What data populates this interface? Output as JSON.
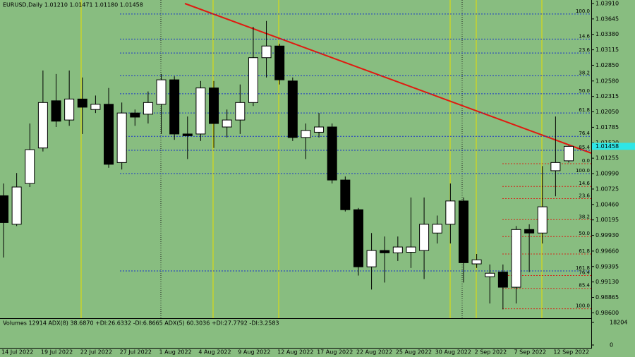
{
  "chart_data": {
    "type": "candlestick",
    "title": "EURUSD,Daily  1.01210 1.01471 1.01180 1.01458",
    "categories": [
      "14 Jul 2022",
      null,
      null,
      "19 Jul 2022",
      null,
      null,
      "22 Jul 2022",
      null,
      null,
      "27 Jul 2022",
      null,
      null,
      "1 Aug 2022",
      null,
      null,
      "4 Aug 2022",
      null,
      null,
      "9 Aug 2022",
      null,
      null,
      "12 Aug 2022",
      null,
      null,
      "17 Aug 2022",
      null,
      null,
      "22 Aug 2022",
      null,
      null,
      "25 Aug 2022",
      null,
      null,
      "30 Aug 2022",
      null,
      null,
      "2 Sep 2022",
      null,
      null,
      "7 Sep 2022",
      null,
      null,
      "12 Sep 2022",
      null
    ],
    "open": [
      1.0061,
      1.0012,
      1.0082,
      1.0143,
      1.0224,
      1.0191,
      1.0227,
      1.0209,
      1.0218,
      1.0118,
      1.0203,
      1.0201,
      1.0218,
      1.026,
      1.0167,
      1.0167,
      1.0246,
      1.0179,
      1.0191,
      1.0221,
      1.0298,
      1.0318,
      1.0258,
      1.0161,
      1.017,
      1.0179,
      1.0088,
      1.0037,
      0.9939,
      0.9967,
      0.9963,
      0.9964,
      0.9967,
      0.9997,
      1.0012,
      1.0052,
      0.9944,
      0.9922,
      0.993,
      0.9904,
      1.0003,
      0.9997,
      1.0104,
      1.0121
    ],
    "high": [
      1.0082,
      1.01,
      1.0185,
      1.0276,
      1.027,
      1.0276,
      1.0264,
      1.0233,
      1.0246,
      1.0221,
      1.0209,
      1.024,
      1.027,
      1.0266,
      1.0197,
      1.0258,
      1.0258,
      1.0209,
      1.0252,
      1.0351,
      1.0361,
      1.0322,
      1.0264,
      1.0185,
      1.0203,
      1.0185,
      1.0094,
      1.004,
      0.9997,
      0.9991,
      0.9991,
      1.0058,
      1.0058,
      1.0027,
      1.0082,
      1.0058,
      0.9961,
      0.9943,
      0.9943,
      1.0009,
      1.0012,
      1.0112,
      1.0197,
      1.01471
    ],
    "low": [
      0.9955,
      1.0009,
      1.0076,
      1.0137,
      1.0179,
      1.0181,
      1.0167,
      1.0203,
      1.0109,
      1.0106,
      1.0181,
      1.0185,
      1.0167,
      1.0157,
      1.0124,
      1.0155,
      1.0143,
      1.0161,
      1.0167,
      1.0215,
      1.0264,
      1.0252,
      1.0155,
      1.0124,
      1.0161,
      1.0082,
      1.0034,
      0.9924,
      0.99,
      0.9912,
      0.9949,
      0.9937,
      0.9918,
      0.9979,
      0.9979,
      0.9912,
      0.9937,
      0.9876,
      0.9866,
      0.9876,
      0.993,
      0.9979,
      1.006,
      1.0118
    ],
    "close": [
      1.0015,
      1.0076,
      1.014,
      1.0221,
      1.0189,
      1.0227,
      1.0213,
      1.0218,
      1.0115,
      1.0203,
      1.0196,
      1.0221,
      1.026,
      1.0167,
      1.0164,
      1.0246,
      1.0185,
      1.0191,
      1.0221,
      1.0298,
      1.0318,
      1.026,
      1.0161,
      1.0173,
      1.0179,
      1.0088,
      1.0037,
      0.9939,
      0.9967,
      0.9963,
      0.9973,
      0.9973,
      1.0012,
      1.0012,
      1.0052,
      0.9946,
      0.9951,
      0.9928,
      0.9904,
      1.0003,
      0.9997,
      1.0042,
      1.0118,
      1.01458
    ],
    "last_price_label": "1.01458",
    "up_color": "#ffffff",
    "down_color": "#000000",
    "background": "#88bd80",
    "ylim": [
      0.9852,
      1.0397
    ],
    "yticks": [
      {
        "value": 1.0391,
        "label": "1.03910"
      },
      1.03645,
      {
        "value": 1.0338,
        "label": "1.03380"
      },
      1.03115,
      {
        "value": 1.0285,
        "label": "1.02850"
      },
      {
        "value": 1.0258,
        "label": "1.02580"
      },
      1.02315,
      {
        "value": 1.0205,
        "label": "1.02050"
      },
      1.01785,
      {
        "value": 1.0152,
        "label": "1.01520"
      },
      1.01255,
      {
        "value": 1.0099,
        "label": "1.00990"
      },
      1.00725,
      {
        "value": 1.0046,
        "label": "1.00460"
      },
      1.00195,
      {
        "value": 0.9993,
        "label": "0.99930"
      },
      {
        "value": 0.9966,
        "label": "0.99660"
      },
      0.99395,
      {
        "value": 0.9913,
        "label": "0.99130"
      },
      0.98865,
      {
        "value": 0.986,
        "label": "0.98600"
      }
    ],
    "fibonacci": [
      {
        "color": "#1a35c8",
        "levels": [
          {
            "label": "100.0",
            "value": 1.0373
          },
          {
            "label": "14.6",
            "value": 1.033
          },
          {
            "label": "23.6",
            "value": 1.0306
          },
          {
            "label": "38.2",
            "value": 1.0267
          },
          {
            "label": "50.0",
            "value": 1.0236
          },
          {
            "label": "61.8",
            "value": 1.0203
          },
          {
            "label": "76.4",
            "value": 1.0163
          },
          {
            "label": "85.4",
            "value": 1.0139
          },
          {
            "label": "100.0",
            "value": 1.0099
          },
          {
            "label": "161.8",
            "value": 0.9932
          }
        ]
      },
      {
        "color": "#d42a1c",
        "levels": [
          {
            "label": "0.0",
            "value": 1.0116
          },
          {
            "label": "14.6",
            "value": 1.0077
          },
          {
            "label": "23.6",
            "value": 1.0056
          },
          {
            "label": "38.2",
            "value": 1.002
          },
          {
            "label": "50.0",
            "value": 0.9991
          },
          {
            "label": "61.8",
            "value": 0.9961
          },
          {
            "label": "76.4",
            "value": 0.9924
          },
          {
            "label": "85.4",
            "value": 0.9902
          },
          {
            "label": "100.0",
            "value": 0.9867
          }
        ]
      }
    ],
    "indicator_label": "Volumes 12914  ADX(8) 38.6870 +DI:26.6332 -DI:6.8665  ADX(5) 60.3036 +DI:27.7792 -DI:3.2583",
    "vol_ylim": [
      0,
      18204
    ],
    "vol_yticks": [
      0,
      18204
    ]
  }
}
